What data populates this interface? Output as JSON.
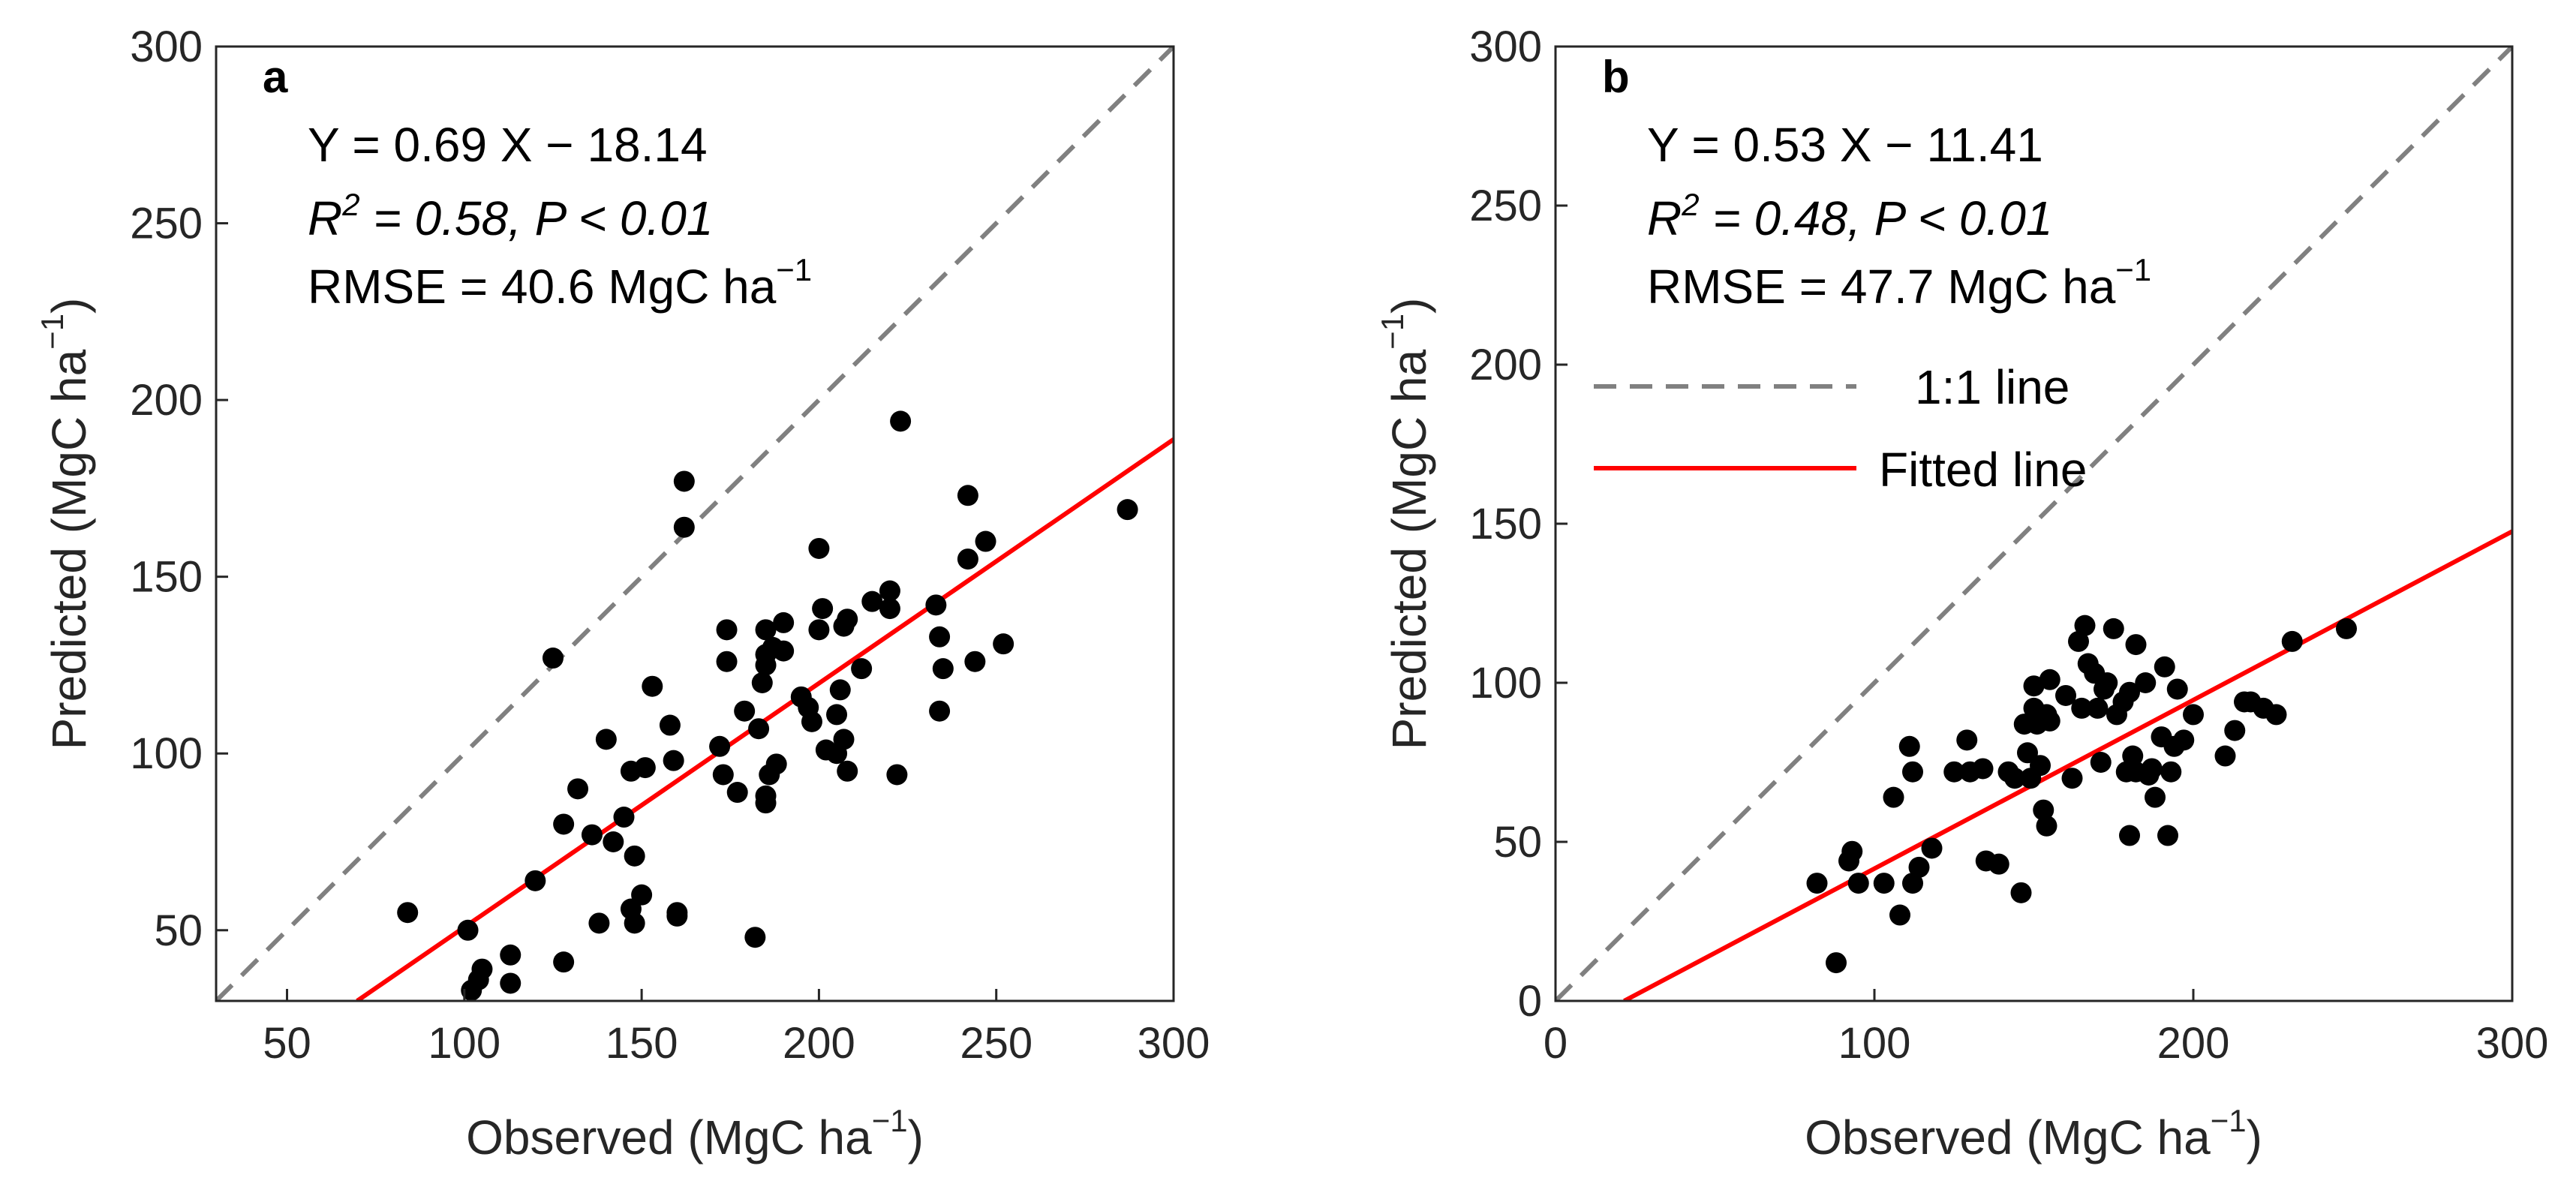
{
  "chart_data": [
    {
      "type": "scatter",
      "panel_label": "a",
      "xlim": [
        30,
        300
      ],
      "ylim": [
        30,
        300
      ],
      "x_ticks": [
        50,
        100,
        150,
        200,
        250,
        300
      ],
      "y_ticks": [
        50,
        100,
        150,
        200,
        250,
        300
      ],
      "x_tick_labels": [
        "50",
        "100",
        "150",
        "200",
        "250",
        "300"
      ],
      "y_tick_labels": [
        "50",
        "100",
        "150",
        "200",
        "250",
        "300"
      ],
      "xlabel": {
        "main": "Observed (MgC ha",
        "sup": "−1",
        "close": ")"
      },
      "ylabel": {
        "main": "Predicted (MgC ha",
        "sup": "−1",
        "close": ")"
      },
      "fit": {
        "slope": 0.69,
        "intercept": -18.14
      },
      "annotation": {
        "equation": "Y = 0.69 X − 18.14",
        "r2_sym": "R",
        "r2_sup": "2",
        "r2_rest": " = 0.58, P < 0.01",
        "rmse": "RMSE = 40.6 MgC ha",
        "rmse_sup": "−1"
      },
      "points": [
        [
          84,
          55
        ],
        [
          101,
          50
        ],
        [
          102,
          33
        ],
        [
          104,
          36
        ],
        [
          105,
          39
        ],
        [
          113,
          43
        ],
        [
          113,
          35
        ],
        [
          120,
          64
        ],
        [
          125,
          127
        ],
        [
          128,
          80
        ],
        [
          128,
          41
        ],
        [
          132,
          90
        ],
        [
          136,
          77
        ],
        [
          138,
          52
        ],
        [
          140,
          104
        ],
        [
          142,
          75
        ],
        [
          145,
          82
        ],
        [
          147,
          95
        ],
        [
          147,
          56
        ],
        [
          148,
          52
        ],
        [
          148,
          71
        ],
        [
          150,
          60
        ],
        [
          151,
          96
        ],
        [
          153,
          119
        ],
        [
          158,
          108
        ],
        [
          159,
          98
        ],
        [
          160,
          55
        ],
        [
          160,
          54
        ],
        [
          162,
          177
        ],
        [
          162,
          164
        ],
        [
          172,
          102
        ],
        [
          173,
          94
        ],
        [
          174,
          135
        ],
        [
          174,
          126
        ],
        [
          177,
          89
        ],
        [
          179,
          112
        ],
        [
          182,
          48
        ],
        [
          183,
          107
        ],
        [
          184,
          120
        ],
        [
          185,
          128
        ],
        [
          185,
          125
        ],
        [
          185,
          135
        ],
        [
          185,
          88
        ],
        [
          185,
          86
        ],
        [
          186,
          94
        ],
        [
          187,
          130
        ],
        [
          188,
          97
        ],
        [
          190,
          129
        ],
        [
          190,
          137
        ],
        [
          195,
          116
        ],
        [
          197,
          113
        ],
        [
          198,
          109
        ],
        [
          200,
          135
        ],
        [
          200,
          158
        ],
        [
          201,
          141
        ],
        [
          202,
          101
        ],
        [
          205,
          111
        ],
        [
          205,
          100
        ],
        [
          206,
          118
        ],
        [
          207,
          136
        ],
        [
          207,
          104
        ],
        [
          208,
          95
        ],
        [
          208,
          138
        ],
        [
          212,
          124
        ],
        [
          215,
          143
        ],
        [
          220,
          146
        ],
        [
          220,
          141
        ],
        [
          222,
          94
        ],
        [
          223,
          194
        ],
        [
          233,
          142
        ],
        [
          234,
          133
        ],
        [
          234,
          112
        ],
        [
          235,
          124
        ],
        [
          242,
          173
        ],
        [
          242,
          155
        ],
        [
          244,
          126
        ],
        [
          247,
          160
        ],
        [
          252,
          131
        ],
        [
          287,
          169
        ]
      ]
    },
    {
      "type": "scatter",
      "panel_label": "b",
      "xlim": [
        0,
        300
      ],
      "ylim": [
        0,
        300
      ],
      "x_ticks": [
        0,
        100,
        200,
        300
      ],
      "y_ticks": [
        0,
        50,
        100,
        150,
        200,
        250,
        300
      ],
      "x_tick_labels": [
        "0",
        "100",
        "200",
        "300"
      ],
      "y_tick_labels": [
        "0",
        "50",
        "100",
        "150",
        "200",
        "250",
        "300"
      ],
      "xlabel": {
        "main": "Observed (MgC ha",
        "sup": "−1",
        "close": ")"
      },
      "ylabel": {
        "main": "Predicted (MgC ha",
        "sup": "−1",
        "close": ")"
      },
      "fit": {
        "slope": 0.53,
        "intercept": -11.41
      },
      "annotation": {
        "equation": "Y = 0.53 X − 11.41",
        "r2_sym": "R",
        "r2_sup": "2",
        "r2_rest": " = 0.48, P < 0.01",
        "rmse": "RMSE = 47.7 MgC ha",
        "rmse_sup": "−1"
      },
      "legend": [
        {
          "label": "1:1 line",
          "style": "dashed",
          "color": "#808080"
        },
        {
          "label": "Fitted line",
          "style": "solid",
          "color": "#ff0000"
        }
      ],
      "points": [
        [
          82,
          37
        ],
        [
          88,
          12
        ],
        [
          92,
          44
        ],
        [
          93,
          47
        ],
        [
          95,
          37
        ],
        [
          103,
          37
        ],
        [
          106,
          64
        ],
        [
          108,
          27
        ],
        [
          111,
          80
        ],
        [
          112,
          37
        ],
        [
          112,
          72
        ],
        [
          114,
          42
        ],
        [
          118,
          48
        ],
        [
          125,
          72
        ],
        [
          129,
          82
        ],
        [
          130,
          72
        ],
        [
          134,
          73
        ],
        [
          135,
          44
        ],
        [
          139,
          43
        ],
        [
          142,
          72
        ],
        [
          144,
          70
        ],
        [
          146,
          34
        ],
        [
          147,
          87
        ],
        [
          148,
          78
        ],
        [
          149,
          70
        ],
        [
          150,
          99
        ],
        [
          150,
          92
        ],
        [
          151,
          87
        ],
        [
          152,
          74
        ],
        [
          153,
          60
        ],
        [
          154,
          55
        ],
        [
          154,
          90
        ],
        [
          155,
          101
        ],
        [
          155,
          88
        ],
        [
          160,
          96
        ],
        [
          162,
          70
        ],
        [
          164,
          113
        ],
        [
          165,
          92
        ],
        [
          166,
          118
        ],
        [
          167,
          106
        ],
        [
          169,
          103
        ],
        [
          170,
          92
        ],
        [
          171,
          75
        ],
        [
          172,
          98
        ],
        [
          173,
          100
        ],
        [
          175,
          117
        ],
        [
          176,
          90
        ],
        [
          178,
          94
        ],
        [
          179,
          72
        ],
        [
          180,
          52
        ],
        [
          180,
          97
        ],
        [
          181,
          77
        ],
        [
          182,
          72
        ],
        [
          182,
          112
        ],
        [
          185,
          100
        ],
        [
          186,
          71
        ],
        [
          187,
          73
        ],
        [
          188,
          64
        ],
        [
          190,
          83
        ],
        [
          191,
          105
        ],
        [
          192,
          52
        ],
        [
          193,
          72
        ],
        [
          194,
          80
        ],
        [
          195,
          98
        ],
        [
          197,
          82
        ],
        [
          200,
          90
        ],
        [
          210,
          77
        ],
        [
          213,
          85
        ],
        [
          216,
          94
        ],
        [
          218,
          94
        ],
        [
          222,
          92
        ],
        [
          226,
          90
        ],
        [
          231,
          113
        ],
        [
          248,
          117
        ]
      ]
    }
  ],
  "colors": {
    "points": "#000000",
    "fit_line": "#ff0000",
    "one_to_one": "#808080",
    "axes": "#262626"
  }
}
